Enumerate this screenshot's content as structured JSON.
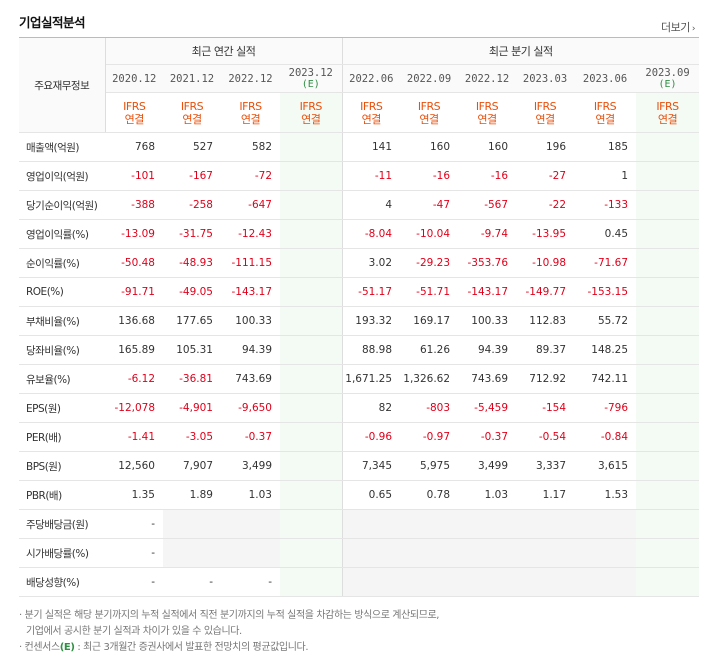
{
  "title": "기업실적분석",
  "more_label": "더보기",
  "header": {
    "label_col": "주요재무정보",
    "annual_group": "최근 연간 실적",
    "quarter_group": "최근 분기 실적",
    "annual_periods": [
      {
        "period": "2020.12",
        "est": ""
      },
      {
        "period": "2021.12",
        "est": ""
      },
      {
        "period": "2022.12",
        "est": ""
      },
      {
        "period": "2023.12",
        "est": "(E)"
      }
    ],
    "quarter_periods": [
      {
        "period": "2022.06",
        "est": ""
      },
      {
        "period": "2022.09",
        "est": ""
      },
      {
        "period": "2022.12",
        "est": ""
      },
      {
        "period": "2023.03",
        "est": ""
      },
      {
        "period": "2023.06",
        "est": ""
      },
      {
        "period": "2023.09",
        "est": "(E)"
      }
    ],
    "ifrs_line1": "IFRS",
    "ifrs_line2": "연결"
  },
  "rows": [
    {
      "label": "매출액(억원)",
      "annual": [
        "768",
        "527",
        "582",
        ""
      ],
      "quarter": [
        "141",
        "160",
        "160",
        "196",
        "185",
        ""
      ]
    },
    {
      "label": "영업이익(억원)",
      "annual": [
        "-101",
        "-167",
        "-72",
        ""
      ],
      "quarter": [
        "-11",
        "-16",
        "-16",
        "-27",
        "1",
        ""
      ]
    },
    {
      "label": "당기순이익(억원)",
      "annual": [
        "-388",
        "-258",
        "-647",
        ""
      ],
      "quarter": [
        "4",
        "-47",
        "-567",
        "-22",
        "-133",
        ""
      ]
    },
    {
      "label": "영업이익률(%)",
      "annual": [
        "-13.09",
        "-31.75",
        "-12.43",
        ""
      ],
      "quarter": [
        "-8.04",
        "-10.04",
        "-9.74",
        "-13.95",
        "0.45",
        ""
      ]
    },
    {
      "label": "순이익률(%)",
      "annual": [
        "-50.48",
        "-48.93",
        "-111.15",
        ""
      ],
      "quarter": [
        "3.02",
        "-29.23",
        "-353.76",
        "-10.98",
        "-71.67",
        ""
      ]
    },
    {
      "label": "ROE(%)",
      "annual": [
        "-91.71",
        "-49.05",
        "-143.17",
        ""
      ],
      "quarter": [
        "-51.17",
        "-51.71",
        "-143.17",
        "-149.77",
        "-153.15",
        ""
      ]
    },
    {
      "label": "부채비율(%)",
      "annual": [
        "136.68",
        "177.65",
        "100.33",
        ""
      ],
      "quarter": [
        "193.32",
        "169.17",
        "100.33",
        "112.83",
        "55.72",
        ""
      ]
    },
    {
      "label": "당좌비율(%)",
      "annual": [
        "165.89",
        "105.31",
        "94.39",
        ""
      ],
      "quarter": [
        "88.98",
        "61.26",
        "94.39",
        "89.37",
        "148.25",
        ""
      ]
    },
    {
      "label": "유보율(%)",
      "annual": [
        "-6.12",
        "-36.81",
        "743.69",
        ""
      ],
      "quarter": [
        "1,671.25",
        "1,326.62",
        "743.69",
        "712.92",
        "742.11",
        ""
      ]
    },
    {
      "label": "EPS(원)",
      "annual": [
        "-12,078",
        "-4,901",
        "-9,650",
        ""
      ],
      "quarter": [
        "82",
        "-803",
        "-5,459",
        "-154",
        "-796",
        ""
      ]
    },
    {
      "label": "PER(배)",
      "annual": [
        "-1.41",
        "-3.05",
        "-0.37",
        ""
      ],
      "quarter": [
        "-0.96",
        "-0.97",
        "-0.37",
        "-0.54",
        "-0.84",
        ""
      ]
    },
    {
      "label": "BPS(원)",
      "annual": [
        "12,560",
        "7,907",
        "3,499",
        ""
      ],
      "quarter": [
        "7,345",
        "5,975",
        "3,499",
        "3,337",
        "3,615",
        ""
      ]
    },
    {
      "label": "PBR(배)",
      "annual": [
        "1.35",
        "1.89",
        "1.03",
        ""
      ],
      "quarter": [
        "0.65",
        "0.78",
        "1.03",
        "1.17",
        "1.53",
        ""
      ]
    },
    {
      "label": "주당배당금(원)",
      "annual": [
        "-",
        "",
        "",
        ""
      ],
      "quarter": [
        "",
        "",
        "",
        "",
        "",
        ""
      ]
    },
    {
      "label": "시가배당률(%)",
      "annual": [
        "-",
        "",
        "",
        ""
      ],
      "quarter": [
        "",
        "",
        "",
        "",
        "",
        ""
      ]
    },
    {
      "label": "배당성향(%)",
      "annual": [
        "-",
        "-",
        "-",
        ""
      ],
      "quarter": [
        "",
        "",
        "",
        "",
        "",
        ""
      ]
    }
  ],
  "notes": [
    "· 분기 실적은 해당 분기까지의 누적 실적에서 직전 분기까지의 누적 실적을 차감하는 방식으로 계산되므로,",
    "기업에서 공시한 분기 실적과 차이가 있을 수 있습니다.",
    "· 컨센서스",
    "(E)",
    " : 최근 3개월간 증권사에서 발표한 전망치의 평균값입니다."
  ]
}
